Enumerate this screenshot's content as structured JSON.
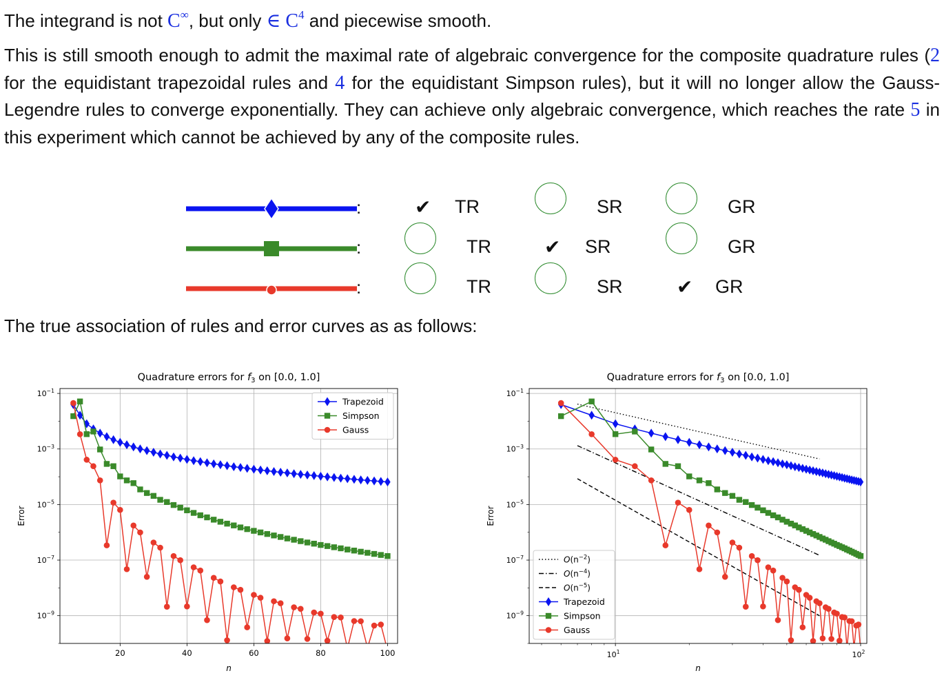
{
  "text": {
    "p1_a": "The integrand is not ",
    "p1_m1": "C",
    "p1_m1sup": "∞",
    "p1_b": ", but only ",
    "p1_m2": "∈ C",
    "p1_m2sup": "4",
    "p1_c": " and piecewise smooth.",
    "p2_a": "This is still smooth enough to admit the maximal rate of algebraic convergence for the composite quadrature rules (",
    "p2_m1": "2",
    "p2_b": " for the equidistant trapezoidal rules and ",
    "p2_m2": "4",
    "p2_c": " for the equidistant Simpson rules), but it will no longer allow the Gauss-Legendre rules to converge exponentially.  They can achieve only algebraic convergence, which reaches the rate ",
    "p2_m3": "5",
    "p2_d": " in this experiment which cannot be achieved by any of the composite rules.",
    "p3": "The true association of rules and error curves as as follows:"
  },
  "quiz": {
    "colon": ":",
    "check": "✔",
    "rows": [
      {
        "color": "#0a14f0",
        "marker": "diamond",
        "checked": "TR",
        "options": [
          "TR",
          "SR",
          "GR"
        ]
      },
      {
        "color": "#3a8a2a",
        "marker": "square",
        "checked": "SR",
        "options": [
          "TR",
          "SR",
          "GR"
        ]
      },
      {
        "color": "#e8392b",
        "marker": "circle",
        "checked": "GR",
        "options": [
          "TR",
          "SR",
          "GR"
        ]
      }
    ]
  },
  "chart_data": [
    {
      "type": "line",
      "title": "Quadrature errors for f3 on [0.0, 1.0]",
      "title_parts": [
        "Quadrature errors for ",
        "f",
        "3",
        " on [0.0, 1.0]"
      ],
      "xlabel": "n",
      "ylabel": "Error",
      "xscale": "linear",
      "yscale": "log",
      "xlim": [
        2,
        103
      ],
      "ylim": [
        1e-10,
        0.15
      ],
      "xticks": [
        20,
        40,
        60,
        80,
        100
      ],
      "xticklabels": [
        "20",
        "40",
        "60",
        "80",
        "100"
      ],
      "ytick_exponents": [
        -1,
        -3,
        -5,
        -7,
        -9
      ],
      "grid": true,
      "legend": "top-right",
      "series": [
        {
          "name": "Trapezoid",
          "color": "#0a14f0",
          "marker": "diamond",
          "x": [
            6,
            8,
            10,
            12,
            14,
            16,
            18,
            20,
            22,
            24,
            26,
            28,
            30,
            32,
            34,
            36,
            38,
            40,
            42,
            44,
            46,
            48,
            50,
            52,
            54,
            56,
            58,
            60,
            62,
            64,
            66,
            68,
            70,
            72,
            74,
            76,
            78,
            80,
            82,
            84,
            86,
            88,
            90,
            92,
            94,
            96,
            98,
            100
          ],
          "y": [
            0.0398,
            0.0164,
            0.0081,
            0.00526,
            0.00372,
            0.00278,
            0.00216,
            0.00173,
            0.00142,
            0.00119,
            0.00101,
            0.00087,
            0.00076,
            0.00066,
            0.00059,
            0.00052,
            0.00047,
            0.00042,
            0.00038,
            0.00035,
            0.00032,
            0.00029,
            0.00027,
            0.00025,
            0.00023,
            0.000215,
            0.0002,
            0.000187,
            0.000175,
            0.000164,
            0.000154,
            0.000145,
            0.000137,
            0.000129,
            0.000122,
            0.000116,
            0.00011,
            0.000104,
            9.9e-05,
            9.4e-05,
            8.9e-05,
            8.5e-05,
            8.1e-05,
            7.7e-05,
            7.4e-05,
            7.1e-05,
            6.8e-05,
            6.5e-05
          ]
        },
        {
          "name": "Simpson",
          "color": "#3a8a2a",
          "marker": "square",
          "x": [
            6,
            8,
            10,
            12,
            14,
            16,
            18,
            20,
            22,
            24,
            26,
            28,
            30,
            32,
            34,
            36,
            38,
            40,
            42,
            44,
            46,
            48,
            50,
            52,
            54,
            56,
            58,
            60,
            62,
            64,
            66,
            68,
            70,
            72,
            74,
            76,
            78,
            80,
            82,
            84,
            86,
            88,
            90,
            92,
            94,
            96,
            98,
            100
          ],
          "y": [
            0.0152,
            0.0514,
            0.00342,
            0.00425,
            0.00096,
            0.00029,
            0.00024,
            0.000103,
            7.4e-05,
            5.9e-05,
            3.5e-05,
            2.6e-05,
            2.05e-05,
            1.48e-05,
            1.23e-05,
            9.6e-06,
            7.7e-06,
            6.2e-06,
            5e-06,
            4.1e-06,
            3.45e-06,
            2.85e-06,
            2.4e-06,
            2.05e-06,
            1.77e-06,
            1.5e-06,
            1.3e-06,
            1.13e-06,
            9.9e-07,
            8.7e-07,
            7.7e-07,
            6.8e-07,
            6e-07,
            5.4e-07,
            4.8e-07,
            4.3e-07,
            3.9e-07,
            3.5e-07,
            3.2e-07,
            2.9e-07,
            2.65e-07,
            2.4e-07,
            2.2e-07,
            2e-07,
            1.83e-07,
            1.67e-07,
            1.53e-07,
            1.4e-07
          ]
        },
        {
          "name": "Gauss",
          "color": "#e8392b",
          "marker": "circle",
          "x": [
            6,
            8,
            10,
            12,
            14,
            16,
            18,
            20,
            22,
            24,
            26,
            28,
            30,
            32,
            34,
            36,
            38,
            40,
            42,
            44,
            46,
            48,
            50,
            52,
            54,
            56,
            58,
            60,
            62,
            64,
            66,
            68,
            70,
            72,
            74,
            76,
            78,
            80,
            82,
            84,
            86,
            88,
            90,
            92,
            94,
            96,
            98,
            100
          ],
          "y": [
            0.045,
            0.0034,
            0.00041,
            0.00024,
            7.4e-05,
            3.4e-07,
            1.17e-05,
            6.4e-06,
            4.7e-08,
            1.76e-06,
            9.9e-07,
            2.5e-08,
            4.3e-07,
            2.8e-07,
            2.1e-09,
            1.4e-07,
            9.9e-08,
            2.15e-09,
            5.5e-08,
            4.2e-08,
            6.9e-10,
            2.3e-08,
            1.7e-08,
            1.3e-10,
            1.05e-08,
            8.5e-09,
            3.8e-10,
            5.6e-09,
            4.4e-09,
            1.22e-10,
            3.3e-09,
            2.8e-09,
            1.52e-10,
            2e-09,
            1.76e-09,
            1.45e-10,
            1.3e-09,
            1.18e-09,
            1.25e-10,
            8.9e-10,
            8.6e-10,
            6.7e-11,
            6.4e-10,
            6.3e-10,
            7e-11,
            4.4e-10,
            4.8e-10,
            5.6e-11
          ]
        }
      ]
    },
    {
      "type": "line",
      "title": "Quadrature errors for f3 on [0.0, 1.0]",
      "title_parts": [
        "Quadrature errors for ",
        "f",
        "3",
        " on [0.0, 1.0]"
      ],
      "xlabel": "n",
      "ylabel": "Error",
      "xscale": "log",
      "yscale": "log",
      "xlim": [
        4.45,
        106
      ],
      "ylim": [
        1e-10,
        0.15
      ],
      "xtick_exponents": [
        1,
        2
      ],
      "ytick_exponents": [
        -1,
        -3,
        -5,
        -7,
        -9
      ],
      "grid": true,
      "legend": "bottom-left",
      "reference_lines": [
        {
          "name": "O(n^-2)",
          "label_parts": [
            "O(n",
            "−2",
            ")"
          ],
          "style": "dotted",
          "x": [
            7,
            68
          ],
          "y": [
            0.0413,
            0.000437
          ]
        },
        {
          "name": "O(n^-4)",
          "label_parts": [
            "O(n",
            "−4",
            ")"
          ],
          "style": "dashdot",
          "x": [
            7,
            68
          ],
          "y": [
            0.00132,
            1.48e-07
          ]
        },
        {
          "name": "O(n^-5)",
          "label_parts": [
            "O(n",
            "−5",
            ")"
          ],
          "style": "dashed",
          "x": [
            7,
            68
          ],
          "y": [
            8.5e-05,
            9.9e-10
          ]
        }
      ],
      "series_ref": "same data as chart 1 series: Trapezoid, Simpson, Gauss"
    }
  ]
}
